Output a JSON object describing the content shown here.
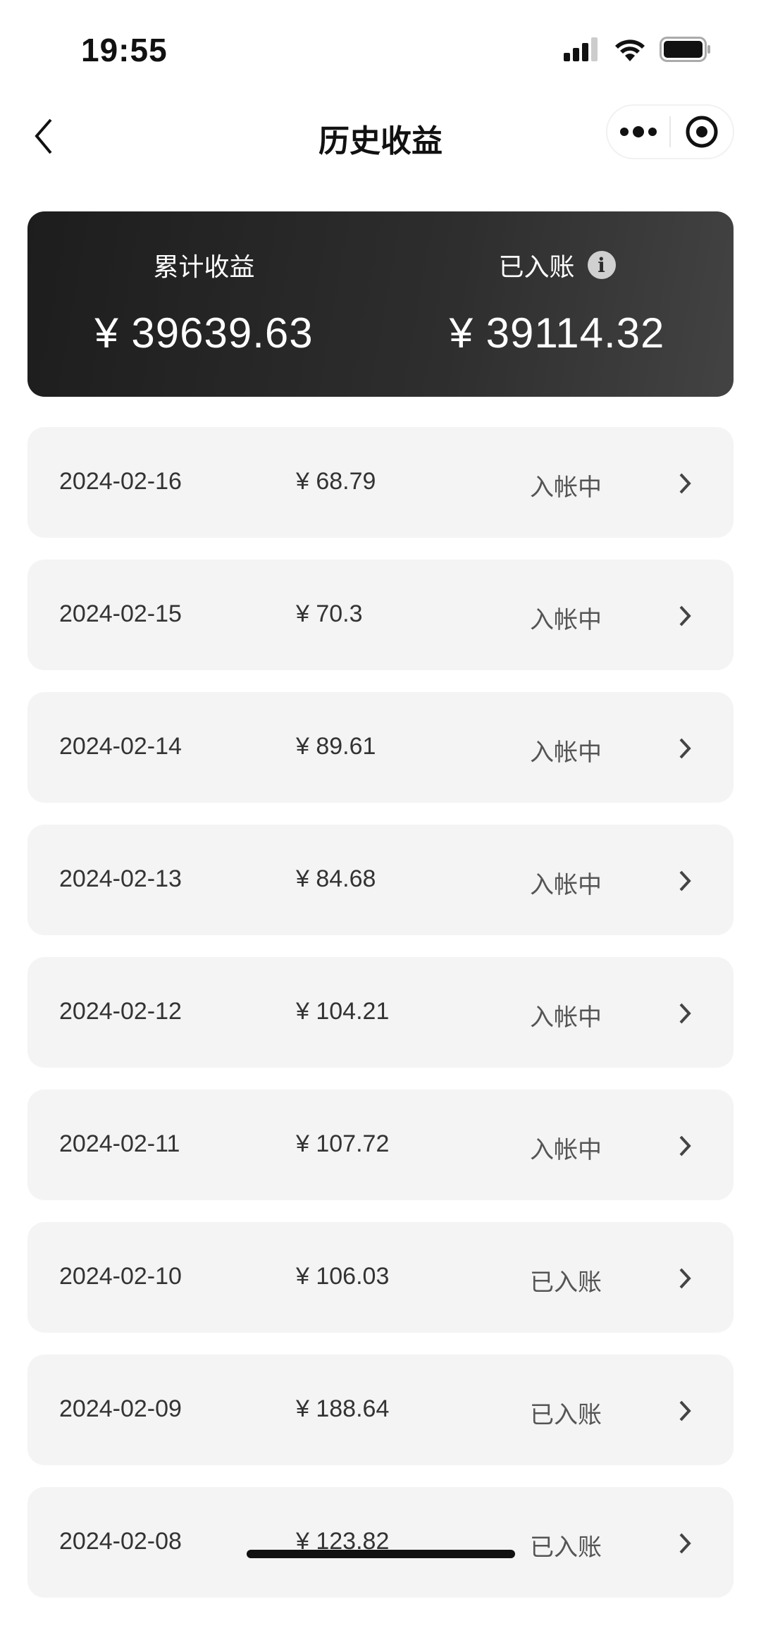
{
  "status_bar": {
    "time": "19:55",
    "icons": [
      "signal-icon",
      "wifi-icon",
      "battery-icon"
    ]
  },
  "nav": {
    "title": "历史收益",
    "back_icon": "chevron-left-icon",
    "more_icon": "more-dots-icon",
    "close_icon": "target-circle-icon"
  },
  "summary": {
    "total_label": "累计收益",
    "total_amount": "¥ 39639.63",
    "settled_label": "已入账",
    "settled_amount": "¥ 39114.32",
    "info_icon": "info-icon"
  },
  "records": [
    {
      "date": "2024-02-16",
      "amount": "¥ 68.79",
      "status": "入帐中"
    },
    {
      "date": "2024-02-15",
      "amount": "¥ 70.3",
      "status": "入帐中"
    },
    {
      "date": "2024-02-14",
      "amount": "¥ 89.61",
      "status": "入帐中"
    },
    {
      "date": "2024-02-13",
      "amount": "¥ 84.68",
      "status": "入帐中"
    },
    {
      "date": "2024-02-12",
      "amount": "¥ 104.21",
      "status": "入帐中"
    },
    {
      "date": "2024-02-11",
      "amount": "¥ 107.72",
      "status": "入帐中"
    },
    {
      "date": "2024-02-10",
      "amount": "¥ 106.03",
      "status": "已入账"
    },
    {
      "date": "2024-02-09",
      "amount": "¥ 188.64",
      "status": "已入账"
    },
    {
      "date": "2024-02-08",
      "amount": "¥ 123.82",
      "status": "已入账"
    }
  ]
}
